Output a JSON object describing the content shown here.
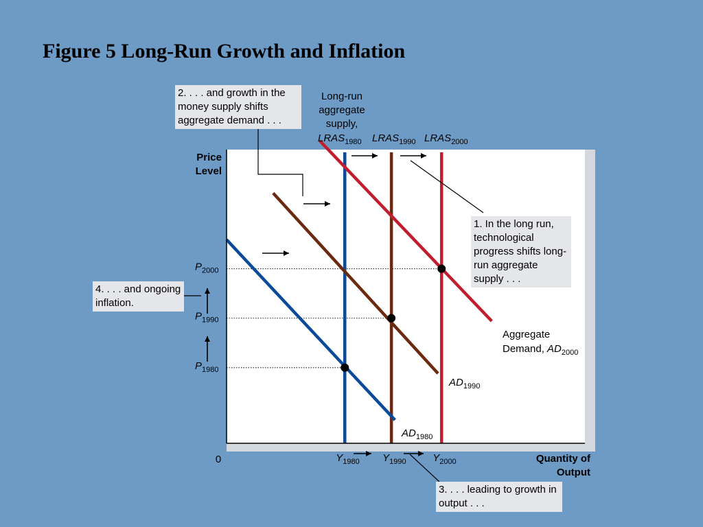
{
  "slide": {
    "title": "Figure 5 Long-Run Growth and Inflation"
  },
  "annotations": {
    "technology": "1. In the long run, technological progress shifts long-run aggregate supply . . .",
    "money": "2. . . . and growth in the money supply shifts aggregate demand . . .",
    "output": "3. . . . leading to growth in output . . .",
    "inflation": "4. . . . and ongoing inflation.",
    "lras_heading": [
      "Long-run",
      "aggregate",
      "supply,"
    ]
  },
  "colors": {
    "background": "#6d9bc5",
    "plot_area": "#ffffff",
    "plot_shadow": "#d3d8de",
    "callout": "#e4e6e9",
    "series_1980": "#0b4a9a",
    "series_1990": "#6b2a10",
    "series_2000": "#c01e2e"
  },
  "chart_data": {
    "type": "line",
    "title": "",
    "xlabel": "Quantity of Output",
    "ylabel": "Price Level",
    "origin_label": "0",
    "axis_units": "qualitative (0-100 index, no numeric ticks printed)",
    "xlim": [
      0,
      100
    ],
    "ylim": [
      0,
      100
    ],
    "grid": false,
    "x_ticks": [
      {
        "main": "Y",
        "sub": "1980",
        "x": 33
      },
      {
        "main": "Y",
        "sub": "1990",
        "x": 46
      },
      {
        "main": "Y",
        "sub": "2000",
        "x": 60
      }
    ],
    "y_ticks": [
      {
        "main": "P",
        "sub": "1980",
        "y": 26
      },
      {
        "main": "P",
        "sub": "1990",
        "y": 43
      },
      {
        "main": "P",
        "sub": "2000",
        "y": 60
      }
    ],
    "series": [
      {
        "name": "LRAS1980",
        "kind": "vertical",
        "x": 33,
        "color": "#0b4a9a",
        "label_main": "LRAS",
        "label_sub": "1980"
      },
      {
        "name": "LRAS1990",
        "kind": "vertical",
        "x": 46,
        "color": "#6b2a10",
        "label_main": "LRAS",
        "label_sub": "1990"
      },
      {
        "name": "LRAS2000",
        "kind": "vertical",
        "x": 60,
        "color": "#c01e2e",
        "label_main": "LRAS",
        "label_sub": "2000"
      },
      {
        "name": "AD1980",
        "kind": "line",
        "x": [
          0,
          47
        ],
        "y": [
          70,
          8
        ],
        "color": "#0b4a9a",
        "label_prefix": "",
        "label_main": "AD",
        "label_sub": "1980"
      },
      {
        "name": "AD1990",
        "kind": "line",
        "x": [
          13,
          59
        ],
        "y": [
          86,
          24
        ],
        "color": "#6b2a10",
        "label_prefix": "",
        "label_main": "AD",
        "label_sub": "1990"
      },
      {
        "name": "AD2000",
        "kind": "line",
        "x": [
          26,
          74
        ],
        "y": [
          104,
          42
        ],
        "color": "#c01e2e",
        "label_prefix": "Aggregate Demand,",
        "label_main": "AD",
        "label_sub": "2000"
      }
    ],
    "equilibria": [
      {
        "x": 33,
        "y": 26
      },
      {
        "x": 46,
        "y": 43
      },
      {
        "x": 60,
        "y": 60
      }
    ]
  }
}
